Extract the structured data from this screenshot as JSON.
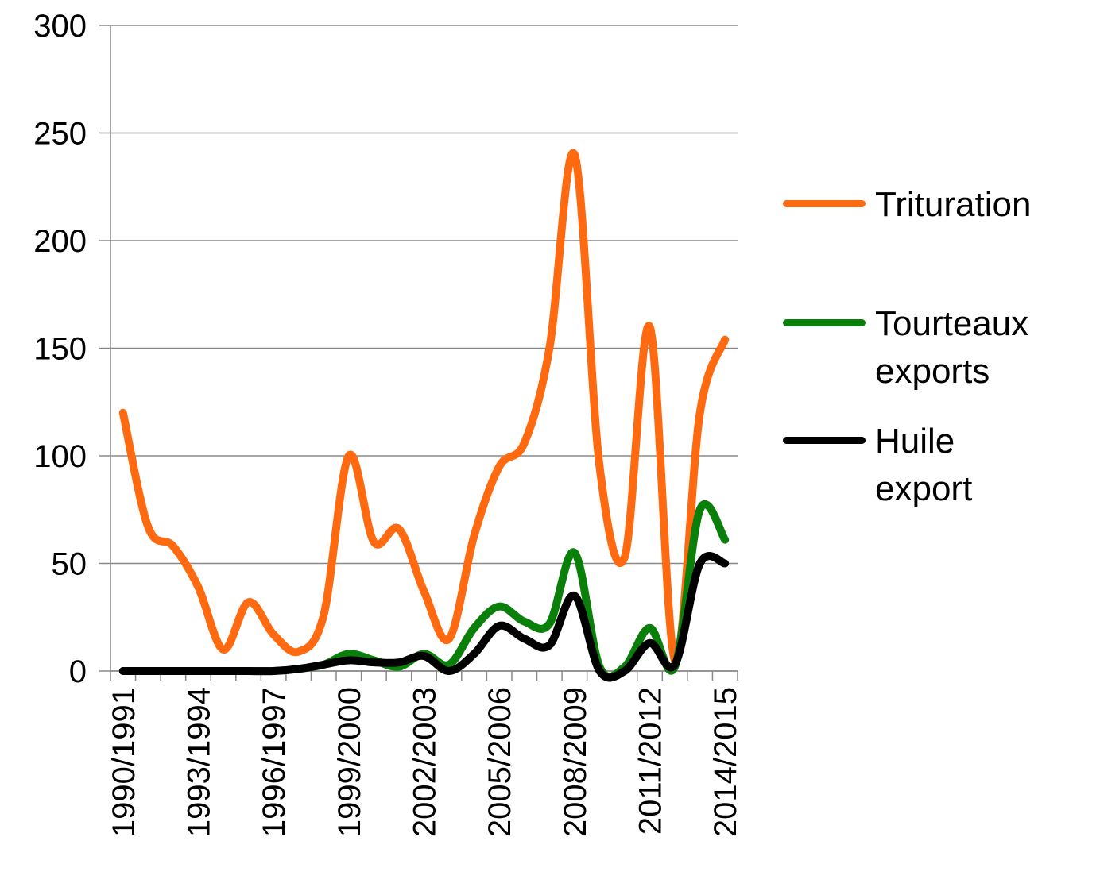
{
  "chart_data": {
    "type": "line",
    "categories": [
      "1990/1991",
      null,
      null,
      "1993/1994",
      null,
      null,
      "1996/1997",
      null,
      null,
      "1999/2000",
      null,
      null,
      "2002/2003",
      null,
      null,
      "2005/2006",
      null,
      null,
      "2008/2009",
      null,
      null,
      "2011/2012",
      null,
      null,
      "2014/2015"
    ],
    "series": [
      {
        "name": "Trituration",
        "color": "#ff6a10",
        "values": [
          120,
          67,
          58,
          39,
          10,
          32,
          17,
          9,
          26,
          100,
          60,
          66,
          37,
          15,
          63,
          95,
          106,
          150,
          240,
          95,
          53,
          160,
          5,
          120,
          154
        ]
      },
      {
        "name": "Tourteaux exports",
        "color": "#0a800a",
        "values": [
          0,
          0,
          0,
          0,
          0,
          0,
          0,
          1,
          3,
          8,
          5,
          2,
          8,
          3,
          20,
          30,
          23,
          22,
          55,
          2,
          2,
          20,
          2,
          75,
          61
        ]
      },
      {
        "name": "Huile export",
        "color": "#000000",
        "values": [
          0,
          0,
          0,
          0,
          0,
          0,
          0,
          1,
          3,
          5,
          4,
          4,
          7,
          0,
          8,
          21,
          15,
          12,
          35,
          0,
          0,
          13,
          3,
          50,
          50
        ]
      }
    ],
    "ylim": [
      0,
      300
    ],
    "yticks": [
      0,
      50,
      100,
      150,
      200,
      250,
      300
    ],
    "grid": true
  }
}
